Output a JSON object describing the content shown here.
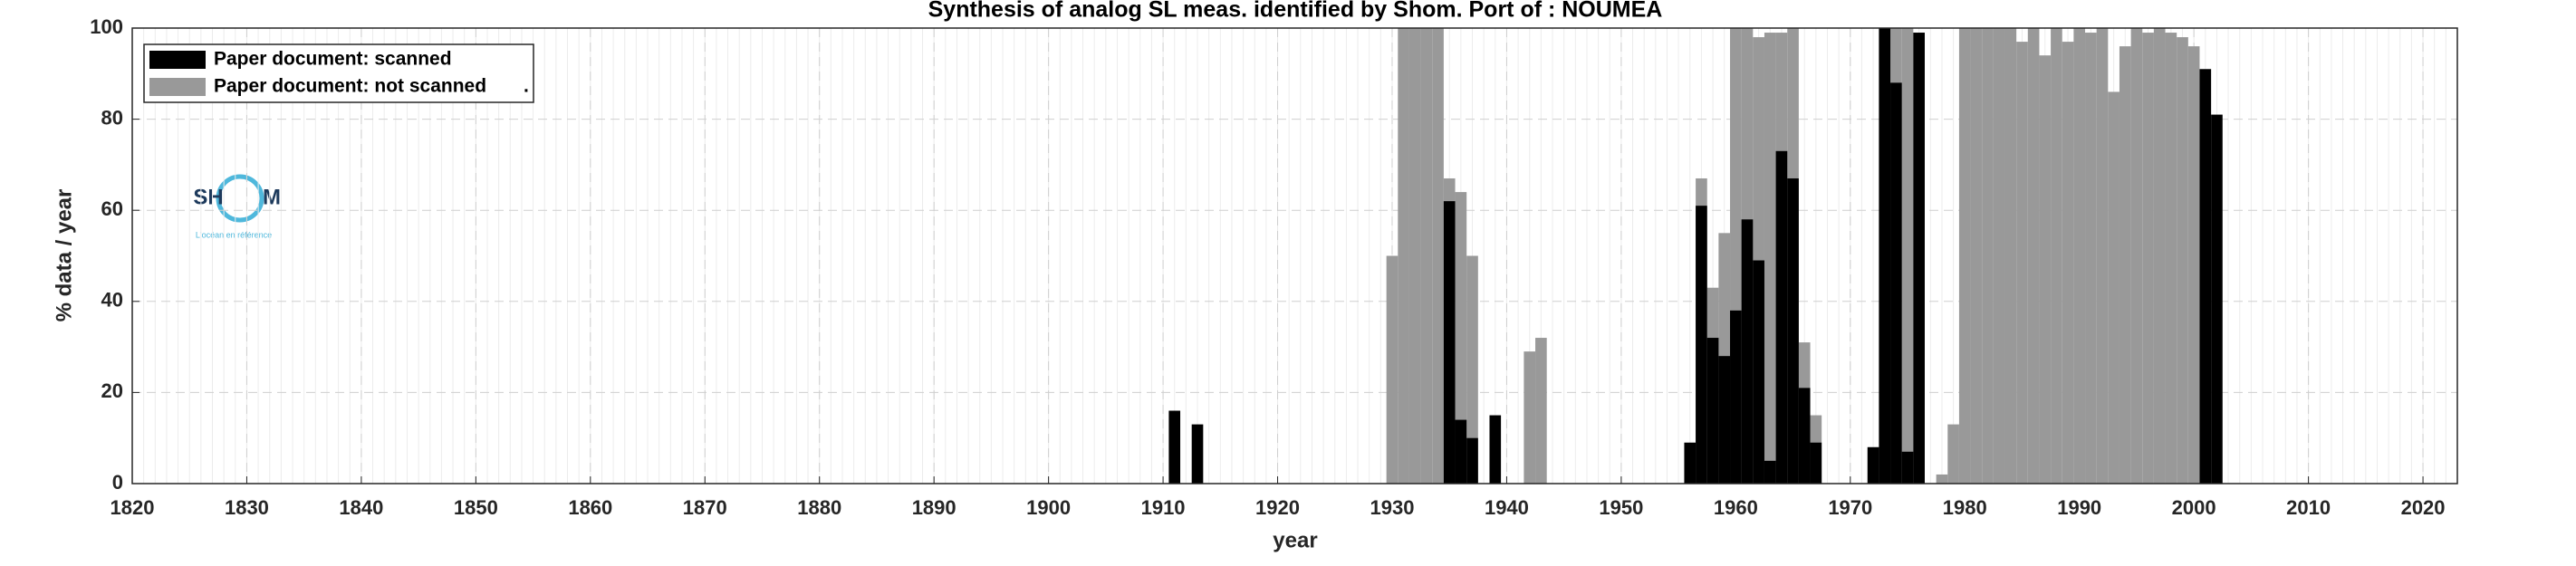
{
  "chart_data": {
    "type": "bar",
    "title": "Synthesis of analog SL meas. identified by Shom. Port of : NOUMEA",
    "xlabel": "year",
    "ylabel": "% data / year",
    "x": [
      1911,
      1913,
      1930,
      1931,
      1932,
      1933,
      1934,
      1935,
      1936,
      1937,
      1939,
      1942,
      1943,
      1956,
      1957,
      1958,
      1959,
      1960,
      1961,
      1962,
      1963,
      1964,
      1965,
      1966,
      1967,
      1972,
      1973,
      1974,
      1975,
      1976,
      1978,
      1979,
      1980,
      1981,
      1982,
      1983,
      1984,
      1985,
      1986,
      1987,
      1988,
      1989,
      1990,
      1991,
      1992,
      1993,
      1994,
      1995,
      1996,
      1997,
      1998,
      1999,
      2000,
      2001,
      2002
    ],
    "series": [
      {
        "name": "Paper document: not scanned",
        "color": "#999999",
        "values": [
          null,
          null,
          50,
          100,
          100,
          100,
          100,
          67,
          64,
          50,
          null,
          29,
          32,
          null,
          67,
          43,
          55,
          100,
          100,
          98,
          99,
          99,
          100,
          31,
          15,
          null,
          100,
          100,
          100,
          null,
          2,
          13,
          100,
          100,
          100,
          100,
          100,
          97,
          100,
          94,
          100,
          97,
          100,
          99,
          100,
          86,
          96,
          100,
          99,
          100,
          99,
          98,
          96,
          null,
          null
        ]
      },
      {
        "name": "Paper document: scanned",
        "color": "#000000",
        "values": [
          16,
          13,
          null,
          null,
          null,
          null,
          null,
          62,
          14,
          10,
          15,
          null,
          null,
          9,
          61,
          32,
          28,
          38,
          58,
          49,
          5,
          73,
          67,
          21,
          9,
          8,
          100,
          88,
          7,
          99,
          null,
          null,
          null,
          null,
          null,
          null,
          null,
          null,
          null,
          null,
          null,
          null,
          null,
          null,
          null,
          null,
          null,
          null,
          null,
          null,
          null,
          null,
          null,
          91,
          81
        ]
      }
    ],
    "legend_suffix": ".",
    "xlim": [
      1820,
      2023
    ],
    "ylim": [
      0,
      100
    ],
    "xticks": [
      1820,
      1830,
      1840,
      1850,
      1860,
      1870,
      1880,
      1890,
      1900,
      1910,
      1920,
      1930,
      1940,
      1950,
      1960,
      1970,
      1980,
      1990,
      2000,
      2010,
      2020
    ],
    "yticks": [
      0,
      20,
      40,
      60,
      80,
      100
    ],
    "grid": true,
    "legend_position": "upper-left"
  },
  "logo": {
    "left": "SH",
    "right": "M",
    "tagline": "L'océan en référence"
  }
}
